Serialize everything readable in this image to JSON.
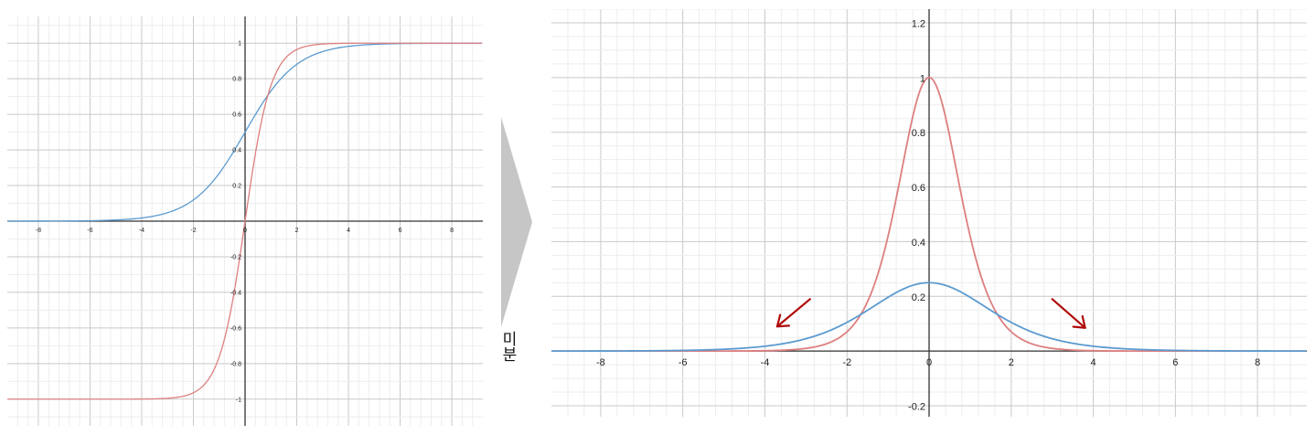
{
  "arrow_label": "미분",
  "colors": {
    "blue": "#5b9bd0",
    "red": "#de7f7f",
    "annotation": "#b00b0b",
    "arrow": "#c6c6c6"
  },
  "chart_data": [
    {
      "type": "line",
      "xlim": [
        -9.2,
        9.2
      ],
      "ylim": [
        -1.15,
        1.15
      ],
      "grid": true,
      "major_step": 2,
      "x_ticks": [
        -8,
        -6,
        -4,
        -2,
        0,
        2,
        4,
        6,
        8
      ],
      "y_ticks": [
        -1,
        -0.8,
        -0.6,
        -0.4,
        -0.2,
        0.2,
        0.4,
        0.6,
        0.8,
        1
      ],
      "series": [
        {
          "color": "blue",
          "formula": "sigmoid",
          "x": [
            -8,
            -6,
            -4,
            -2,
            -1,
            0,
            1,
            2,
            4,
            6,
            8
          ],
          "y": [
            0.0003,
            0.0025,
            0.018,
            0.119,
            0.269,
            0.5,
            0.731,
            0.881,
            0.982,
            0.9975,
            0.9997
          ]
        },
        {
          "color": "red",
          "formula": "tanh",
          "x": [
            -8,
            -6,
            -4,
            -2,
            -1,
            0,
            1,
            2,
            4,
            6,
            8
          ],
          "y": [
            -1,
            -1,
            -0.999,
            -0.964,
            -0.762,
            0,
            0.762,
            0.964,
            0.999,
            1,
            1
          ]
        }
      ]
    },
    {
      "type": "line",
      "xlim": [
        -9.2,
        9.2
      ],
      "ylim": [
        -0.24,
        1.25
      ],
      "grid": true,
      "major_step": 2,
      "x_ticks": [
        -8,
        -6,
        -4,
        -2,
        0,
        2,
        4,
        6,
        8
      ],
      "y_ticks": [
        -0.2,
        0.2,
        0.4,
        0.6,
        0.8,
        1,
        1.2
      ],
      "series": [
        {
          "color": "red",
          "formula": "tanh_derivative",
          "x": [
            -8,
            -6,
            -4,
            -3,
            -2,
            -1,
            0,
            1,
            2,
            3,
            4,
            6,
            8
          ],
          "y": [
            0,
            0,
            0.0013,
            0.0099,
            0.071,
            0.42,
            1,
            0.42,
            0.071,
            0.0099,
            0.0013,
            0,
            0
          ]
        },
        {
          "color": "blue",
          "formula": "sigmoid_derivative",
          "x": [
            -8,
            -6,
            -4,
            -3,
            -2,
            -1,
            0,
            1,
            2,
            3,
            4,
            6,
            8
          ],
          "y": [
            0.0003,
            0.0025,
            0.0177,
            0.0452,
            0.105,
            0.197,
            0.25,
            0.197,
            0.105,
            0.0452,
            0.0177,
            0.0025,
            0.0003
          ]
        }
      ],
      "annotations": [
        {
          "type": "arrow",
          "color": "annotation",
          "direction": "down-left",
          "from": [
            -2.9,
            0.19
          ],
          "to": [
            -3.7,
            0.09
          ]
        },
        {
          "type": "arrow",
          "color": "annotation",
          "direction": "down-right",
          "from": [
            3.0,
            0.19
          ],
          "to": [
            3.8,
            0.085
          ]
        }
      ]
    }
  ]
}
